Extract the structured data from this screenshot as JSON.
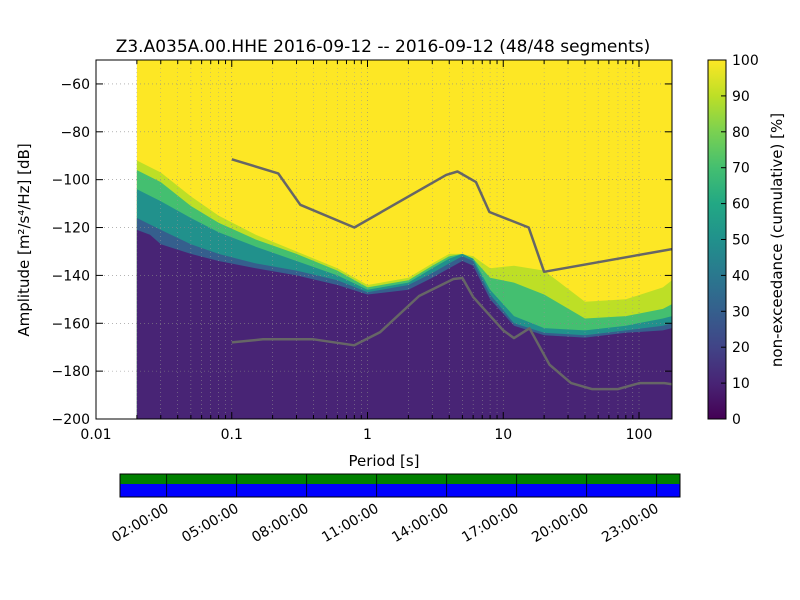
{
  "chart_data": {
    "type": "heatmap",
    "title": "Z3.A035A.00.HHE   2016-09-12 -- 2016-09-12  (48/48 segments)",
    "xlabel": "Period [s]",
    "ylabel": "Amplitude [m²/s⁴/Hz] [dB]",
    "x_scale": "log",
    "xlim": [
      0.01,
      175
    ],
    "ylim": [
      -200,
      -50
    ],
    "x_ticks": [
      {
        "value": 0.01,
        "label": "0.01"
      },
      {
        "value": 0.1,
        "label": "0.1"
      },
      {
        "value": 1,
        "label": "1"
      },
      {
        "value": 10,
        "label": "10"
      },
      {
        "value": 100,
        "label": "100"
      }
    ],
    "y_ticks": [
      {
        "value": -60,
        "label": "−60"
      },
      {
        "value": -80,
        "label": "−80"
      },
      {
        "value": -100,
        "label": "−100"
      },
      {
        "value": -120,
        "label": "−120"
      },
      {
        "value": -140,
        "label": "−140"
      },
      {
        "value": -160,
        "label": "−160"
      },
      {
        "value": -180,
        "label": "−180"
      },
      {
        "value": -200,
        "label": "−200"
      }
    ],
    "grid": true,
    "colorbar": {
      "label": "non-exceedance (cumulative) [%]",
      "range": [
        0,
        100
      ],
      "ticks": [
        {
          "value": 0,
          "label": "0"
        },
        {
          "value": 10,
          "label": "10"
        },
        {
          "value": 20,
          "label": "20"
        },
        {
          "value": 30,
          "label": "30"
        },
        {
          "value": 40,
          "label": "40"
        },
        {
          "value": 50,
          "label": "50"
        },
        {
          "value": 60,
          "label": "60"
        },
        {
          "value": 70,
          "label": "70"
        },
        {
          "value": 80,
          "label": "80"
        },
        {
          "value": 90,
          "label": "90"
        },
        {
          "value": 100,
          "label": "100"
        }
      ],
      "colormap": "viridis",
      "stops": [
        "#440154",
        "#482475",
        "#414487",
        "#355f8d",
        "#2a788e",
        "#21918c",
        "#22a884",
        "#44bf70",
        "#7ad151",
        "#bddf26",
        "#fde725"
      ]
    },
    "psd_data_start_period": 0.02,
    "percentile_contours": [
      {
        "level": 10,
        "points": [
          [
            0.02,
            -121
          ],
          [
            0.025,
            -123
          ],
          [
            0.03,
            -127
          ],
          [
            0.05,
            -131
          ],
          [
            0.08,
            -134
          ],
          [
            0.15,
            -137
          ],
          [
            0.3,
            -140
          ],
          [
            0.6,
            -144
          ],
          [
            1,
            -148
          ],
          [
            2,
            -146
          ],
          [
            3,
            -141
          ],
          [
            4,
            -137
          ],
          [
            5,
            -134
          ],
          [
            6,
            -136
          ],
          [
            8,
            -150
          ],
          [
            12,
            -161
          ],
          [
            20,
            -165
          ],
          [
            40,
            -166
          ],
          [
            80,
            -164
          ],
          [
            150,
            -163
          ],
          [
            175,
            -162
          ]
        ]
      },
      {
        "level": 30,
        "points": [
          [
            0.02,
            -116
          ],
          [
            0.03,
            -121
          ],
          [
            0.05,
            -127
          ],
          [
            0.08,
            -131
          ],
          [
            0.15,
            -135
          ],
          [
            0.3,
            -138
          ],
          [
            0.6,
            -142
          ],
          [
            1,
            -147
          ],
          [
            2,
            -144
          ],
          [
            3,
            -139
          ],
          [
            4,
            -135
          ],
          [
            5,
            -132
          ],
          [
            6,
            -134
          ],
          [
            8,
            -148
          ],
          [
            12,
            -160
          ],
          [
            20,
            -164
          ],
          [
            40,
            -165
          ],
          [
            80,
            -163
          ],
          [
            150,
            -161
          ],
          [
            175,
            -160
          ]
        ]
      },
      {
        "level": 50,
        "points": [
          [
            0.02,
            -104
          ],
          [
            0.03,
            -109
          ],
          [
            0.05,
            -116
          ],
          [
            0.08,
            -122
          ],
          [
            0.15,
            -128
          ],
          [
            0.3,
            -134
          ],
          [
            0.6,
            -140
          ],
          [
            1,
            -146
          ],
          [
            2,
            -143
          ],
          [
            3,
            -137
          ],
          [
            4,
            -133
          ],
          [
            5,
            -131
          ],
          [
            6,
            -133
          ],
          [
            8,
            -146
          ],
          [
            12,
            -157
          ],
          [
            20,
            -162
          ],
          [
            40,
            -163
          ],
          [
            80,
            -161
          ],
          [
            150,
            -158
          ],
          [
            175,
            -157
          ]
        ]
      },
      {
        "level": 70,
        "points": [
          [
            0.02,
            -96
          ],
          [
            0.03,
            -101
          ],
          [
            0.05,
            -111
          ],
          [
            0.08,
            -118
          ],
          [
            0.15,
            -125
          ],
          [
            0.3,
            -131
          ],
          [
            0.6,
            -138
          ],
          [
            1,
            -145
          ],
          [
            2,
            -142
          ],
          [
            3,
            -136
          ],
          [
            4,
            -132
          ],
          [
            5,
            -131
          ],
          [
            6,
            -133
          ],
          [
            8,
            -141
          ],
          [
            12,
            -143
          ],
          [
            20,
            -148
          ],
          [
            40,
            -158
          ],
          [
            80,
            -157
          ],
          [
            150,
            -154
          ],
          [
            175,
            -152
          ]
        ]
      },
      {
        "level": 90,
        "points": [
          [
            0.02,
            -92
          ],
          [
            0.03,
            -97
          ],
          [
            0.05,
            -107
          ],
          [
            0.08,
            -115
          ],
          [
            0.15,
            -123
          ],
          [
            0.3,
            -130
          ],
          [
            0.6,
            -137
          ],
          [
            1,
            -144
          ],
          [
            2,
            -141
          ],
          [
            3,
            -135
          ],
          [
            4,
            -131
          ],
          [
            5,
            -131
          ],
          [
            6,
            -132
          ],
          [
            8,
            -137
          ],
          [
            12,
            -136
          ],
          [
            20,
            -138
          ],
          [
            40,
            -151
          ],
          [
            80,
            -150
          ],
          [
            150,
            -145
          ],
          [
            175,
            -142
          ]
        ]
      }
    ],
    "reference_curves": [
      {
        "points": [
          [
            0.1,
            -91.5
          ],
          [
            0.22,
            -97.4
          ],
          [
            0.32,
            -110.5
          ],
          [
            0.8,
            -120.0
          ],
          [
            3.8,
            -98.0
          ],
          [
            4.6,
            -96.6
          ],
          [
            6.3,
            -101.0
          ],
          [
            7.9,
            -113.5
          ],
          [
            15.4,
            -120.0
          ],
          [
            20.0,
            -138.5
          ],
          [
            175,
            -129.0
          ]
        ]
      },
      {
        "points": [
          [
            0.1,
            -168.0
          ],
          [
            0.17,
            -166.7
          ],
          [
            0.4,
            -166.7
          ],
          [
            0.8,
            -169.2
          ],
          [
            1.24,
            -163.7
          ],
          [
            2.4,
            -148.6
          ],
          [
            4.3,
            -141.5
          ],
          [
            5.0,
            -141.1
          ],
          [
            6.0,
            -149.0
          ],
          [
            10.0,
            -163.0
          ],
          [
            12.0,
            -166.2
          ],
          [
            15.6,
            -162.1
          ],
          [
            21.9,
            -177.3
          ],
          [
            31.6,
            -185.0
          ],
          [
            45.0,
            -187.5
          ],
          [
            70.0,
            -187.5
          ],
          [
            101.0,
            -185.0
          ],
          [
            154.0,
            -185.0
          ],
          [
            175.0,
            -185.5
          ]
        ]
      }
    ]
  },
  "timeline": {
    "labels": [
      "02:00:00",
      "05:00:00",
      "08:00:00",
      "11:00:00",
      "14:00:00",
      "17:00:00",
      "20:00:00",
      "23:00:00"
    ],
    "data_color": "#008000",
    "psd_color": "#0000ff"
  }
}
